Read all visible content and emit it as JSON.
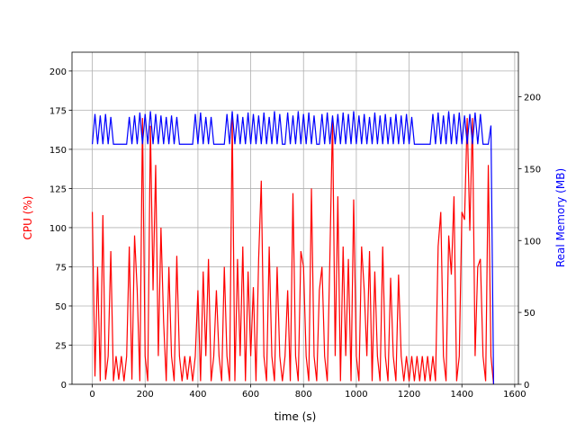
{
  "chart_data": {
    "type": "line",
    "x": [
      0,
      10,
      20,
      30,
      40,
      50,
      60,
      70,
      80,
      90,
      100,
      110,
      120,
      130,
      140,
      150,
      160,
      170,
      180,
      190,
      200,
      210,
      220,
      230,
      240,
      250,
      260,
      270,
      280,
      290,
      300,
      310,
      320,
      330,
      340,
      350,
      360,
      370,
      380,
      390,
      400,
      410,
      420,
      430,
      440,
      450,
      460,
      470,
      480,
      490,
      500,
      510,
      520,
      530,
      540,
      550,
      560,
      570,
      580,
      590,
      600,
      610,
      620,
      630,
      640,
      650,
      660,
      670,
      680,
      690,
      700,
      710,
      720,
      730,
      740,
      750,
      760,
      770,
      780,
      790,
      800,
      810,
      820,
      830,
      840,
      850,
      860,
      870,
      880,
      890,
      900,
      910,
      920,
      930,
      940,
      950,
      960,
      970,
      980,
      990,
      1000,
      1010,
      1020,
      1030,
      1040,
      1050,
      1060,
      1070,
      1080,
      1090,
      1100,
      1110,
      1120,
      1130,
      1140,
      1150,
      1160,
      1170,
      1180,
      1190,
      1200,
      1210,
      1220,
      1230,
      1240,
      1250,
      1260,
      1270,
      1280,
      1290,
      1300,
      1310,
      1320,
      1330,
      1340,
      1350,
      1360,
      1370,
      1380,
      1390,
      1400,
      1410,
      1420,
      1430,
      1440,
      1450,
      1460,
      1470,
      1480,
      1490,
      1500,
      1510,
      1520
    ],
    "series": [
      {
        "name": "CPU (%)",
        "color": "#ff0000",
        "values": [
          110,
          5,
          75,
          2,
          108,
          3,
          18,
          85,
          2,
          18,
          3,
          18,
          2,
          18,
          88,
          3,
          95,
          60,
          2,
          170,
          18,
          2,
          165,
          60,
          140,
          18,
          100,
          40,
          2,
          75,
          18,
          2,
          82,
          18,
          2,
          18,
          3,
          18,
          2,
          18,
          60,
          2,
          72,
          18,
          80,
          2,
          18,
          60,
          18,
          2,
          75,
          18,
          2,
          170,
          2,
          80,
          18,
          88,
          2,
          72,
          18,
          62,
          2,
          80,
          130,
          18,
          2,
          88,
          18,
          2,
          75,
          18,
          2,
          18,
          60,
          2,
          122,
          18,
          2,
          85,
          75,
          18,
          2,
          125,
          18,
          2,
          60,
          75,
          18,
          2,
          82,
          170,
          18,
          120,
          2,
          88,
          18,
          80,
          2,
          118,
          18,
          2,
          88,
          60,
          18,
          85,
          2,
          72,
          18,
          2,
          88,
          18,
          2,
          68,
          18,
          2,
          70,
          18,
          2,
          18,
          2,
          18,
          2,
          18,
          2,
          18,
          2,
          18,
          2,
          18,
          2,
          88,
          110,
          18,
          2,
          95,
          70,
          120,
          2,
          18,
          110,
          105,
          170,
          98,
          170,
          18,
          75,
          80,
          18,
          2,
          140,
          18,
          0
        ]
      },
      {
        "name": "Real Memory (MB)",
        "color": "#0000ff",
        "axis": "y2",
        "values": [
          167,
          188,
          167,
          187,
          167,
          188,
          167,
          186,
          167,
          167,
          167,
          167,
          167,
          167,
          186,
          167,
          187,
          167,
          189,
          167,
          188,
          167,
          190,
          167,
          188,
          167,
          187,
          167,
          186,
          167,
          187,
          167,
          186,
          167,
          167,
          167,
          167,
          167,
          167,
          188,
          167,
          189,
          167,
          186,
          167,
          186,
          167,
          167,
          167,
          167,
          167,
          188,
          167,
          190,
          167,
          188,
          167,
          186,
          167,
          189,
          167,
          188,
          167,
          187,
          167,
          189,
          167,
          186,
          167,
          190,
          167,
          188,
          167,
          167,
          189,
          167,
          187,
          167,
          190,
          167,
          188,
          167,
          189,
          167,
          187,
          167,
          167,
          188,
          167,
          189,
          167,
          187,
          167,
          188,
          167,
          189,
          167,
          188,
          167,
          190,
          167,
          187,
          167,
          188,
          167,
          186,
          167,
          189,
          167,
          187,
          167,
          188,
          167,
          186,
          167,
          188,
          167,
          187,
          167,
          188,
          167,
          186,
          167,
          167,
          167,
          167,
          167,
          167,
          167,
          188,
          167,
          189,
          167,
          187,
          167,
          190,
          167,
          188,
          167,
          189,
          167,
          187,
          167,
          188,
          167,
          189,
          167,
          188,
          167,
          167,
          167,
          180,
          0
        ]
      }
    ],
    "xlabel": "time (s)",
    "ylabel": "CPU (%)",
    "y2label": "Real Memory (MB)",
    "xlim": [
      -77,
      1614
    ],
    "xticks": [
      0,
      200,
      400,
      600,
      800,
      1000,
      1200,
      1400,
      1600
    ],
    "ylim": [
      0,
      212
    ],
    "yticks": [
      0,
      25,
      50,
      75,
      100,
      125,
      150,
      175,
      200
    ],
    "y2lim": [
      0,
      231
    ],
    "y2ticks": [
      0,
      50,
      100,
      150,
      200
    ],
    "grid": true
  }
}
